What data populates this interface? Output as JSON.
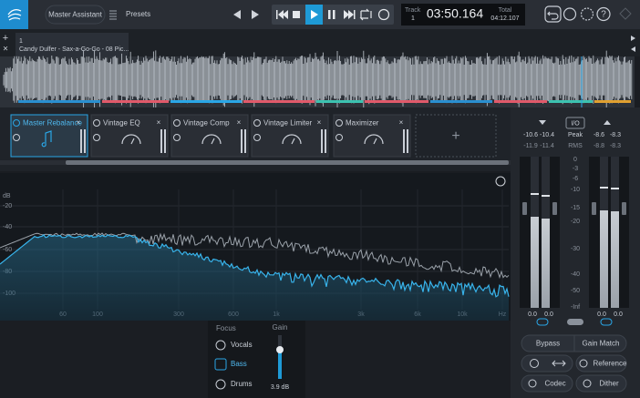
{
  "toolbar": {
    "master_assistant": "Master Assistant",
    "presets": "Presets",
    "track_label": "Track",
    "track_number": "1",
    "time": "03:50.164",
    "total_label": "Total",
    "total_time": "04:12.107"
  },
  "track_tab": {
    "number": "1",
    "name": "Candy Dulfer - Sax-a-Go-Go - 08 Pic..."
  },
  "modules": [
    "Master Rebalance",
    "Vintage EQ",
    "Vintage Comp",
    "Vintage Limiter",
    "Maximizer"
  ],
  "spectrum": {
    "unit": "dB",
    "y_labels": [
      "-20",
      "-40",
      "-60",
      "-80",
      "-100"
    ],
    "x_labels": [
      "60",
      "100",
      "300",
      "600",
      "1k",
      "3k",
      "6k",
      "10k",
      "Hz"
    ]
  },
  "focus": {
    "label": "Focus",
    "options": [
      "Vocals",
      "Bass",
      "Drums"
    ],
    "gain_label": "Gain",
    "gain_value": "3.9 dB"
  },
  "meters": {
    "io": "I/O",
    "peak_label": "Peak",
    "rms_label": "RMS",
    "input_peak": [
      "-10.6",
      "-10.4"
    ],
    "input_rms": [
      "-11.9",
      "-11.4"
    ],
    "output_peak": [
      "-8.6",
      "-8.3"
    ],
    "output_rms": [
      "-8.8",
      "-8.3"
    ],
    "scale": [
      "0",
      "-3",
      "-6",
      "-10",
      "-15",
      "-20",
      "-30",
      "-40",
      "-50",
      "-Inf"
    ],
    "input_gain": [
      "0.0",
      "0.0"
    ],
    "output_gain": [
      "0.0",
      "0.0"
    ]
  },
  "buttons": {
    "bypass": "Bypass",
    "gain_match": "Gain Match",
    "reference": "Reference",
    "codec": "Codec",
    "dither": "Dither"
  }
}
